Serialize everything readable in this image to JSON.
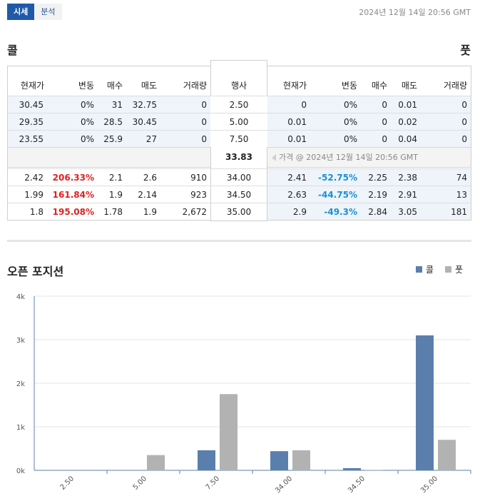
{
  "tabs": [
    {
      "label": "시세",
      "active": true
    },
    {
      "label": "분석",
      "active": false
    }
  ],
  "timestamp": "2024년 12월 14일 20:56 GMT",
  "call_title": "콜",
  "put_title": "풋",
  "headers": {
    "call": [
      "현재가",
      "변동",
      "매수",
      "매도",
      "거래량"
    ],
    "strike": "행사",
    "put": [
      "현재가",
      "변동",
      "매수",
      "매도",
      "거래량"
    ]
  },
  "rows_itm": [
    {
      "call": [
        "30.45",
        "0%",
        "31",
        "32.75",
        "0"
      ],
      "strike": "2.50",
      "put": [
        "0",
        "0%",
        "0",
        "0.01",
        "0"
      ]
    },
    {
      "call": [
        "29.35",
        "0%",
        "28.5",
        "30.45",
        "0"
      ],
      "strike": "5.00",
      "put": [
        "0.01",
        "0%",
        "0",
        "0.02",
        "0"
      ]
    },
    {
      "call": [
        "23.55",
        "0%",
        "25.9",
        "27",
        "0"
      ],
      "strike": "7.50",
      "put": [
        "0.01",
        "0%",
        "0",
        "0.04",
        "0"
      ]
    }
  ],
  "underlying": {
    "price": "33.83",
    "note": "가격 @ 2024년 12월 14일 20:56 GMT"
  },
  "rows_otm": [
    {
      "call": [
        "2.42",
        "206.33%",
        "2.1",
        "2.6",
        "910"
      ],
      "strike": "34.00",
      "put": [
        "2.41",
        "-52.75%",
        "2.25",
        "2.38",
        "74"
      ]
    },
    {
      "call": [
        "1.99",
        "161.84%",
        "1.9",
        "2.14",
        "923"
      ],
      "strike": "34.50",
      "put": [
        "2.63",
        "-44.75%",
        "2.19",
        "2.91",
        "13"
      ]
    },
    {
      "call": [
        "1.8",
        "195.08%",
        "1.78",
        "1.9",
        "2,672"
      ],
      "strike": "35.00",
      "put": [
        "2.9",
        "-49.3%",
        "2.84",
        "3.05",
        "181"
      ]
    }
  ],
  "open_position": {
    "title": "오픈 포지션",
    "legend": [
      "콜",
      "풋"
    ]
  },
  "colors": {
    "call": "#5b7fad",
    "put": "#b2b2b2",
    "tab_active": "#1f5aa6",
    "positive": "#e02020",
    "negative": "#1a8fd6"
  },
  "chart_data": {
    "type": "bar",
    "categories": [
      "2.50",
      "5.00",
      "7.50",
      "34.00",
      "34.50",
      "35.00"
    ],
    "series": [
      {
        "name": "콜",
        "values": [
          0,
          0,
          460,
          440,
          50,
          3100
        ]
      },
      {
        "name": "풋",
        "values": [
          0,
          350,
          1750,
          460,
          10,
          700
        ]
      }
    ],
    "ylim": [
      0,
      4000
    ],
    "yticks": [
      0,
      1000,
      2000,
      3000,
      4000
    ],
    "ytick_labels": [
      "0k",
      "1k",
      "2k",
      "3k",
      "4k"
    ],
    "grid": true,
    "legend": "top-right"
  }
}
